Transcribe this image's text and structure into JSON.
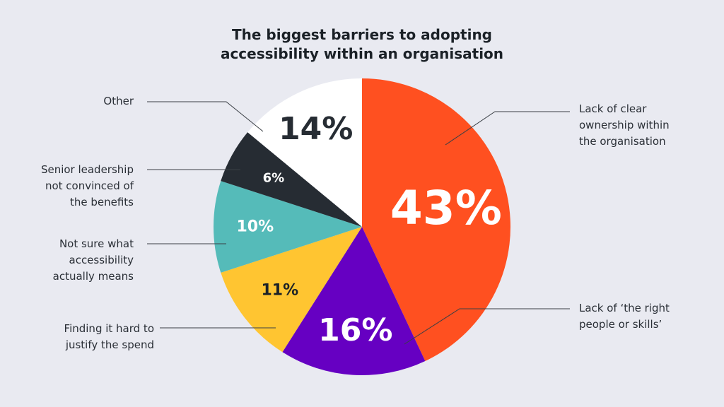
{
  "chart_data": {
    "type": "pie",
    "title_lines": [
      "The biggest barriers to adopting",
      "accessibility within an organisation"
    ],
    "slices": [
      {
        "label": "Lack of clear\nownership within\nthe organisation",
        "value": 43,
        "display": "43%",
        "color": "#ff5020",
        "text_color": "#ffffff"
      },
      {
        "label": "Lack of ‘the right\npeople or skills’",
        "value": 16,
        "display": "16%",
        "color": "#6600c2",
        "text_color": "#ffffff"
      },
      {
        "label": "Finding it hard to\njustify the spend",
        "value": 11,
        "display": "11%",
        "color": "#ffc531",
        "text_color": "#1b2127"
      },
      {
        "label": "Not sure what\naccessibility\nactually means",
        "value": 10,
        "display": "10%",
        "color": "#55bbb9",
        "text_color": "#ffffff"
      },
      {
        "label": "Senior leadership\nnot convinced of\nthe benefits",
        "value": 6,
        "display": "6%",
        "color": "#262c33",
        "text_color": "#ffffff"
      },
      {
        "label": "Other",
        "value": 14,
        "display": "14%",
        "color": "#ffffff",
        "text_color": "#262c33"
      }
    ]
  }
}
